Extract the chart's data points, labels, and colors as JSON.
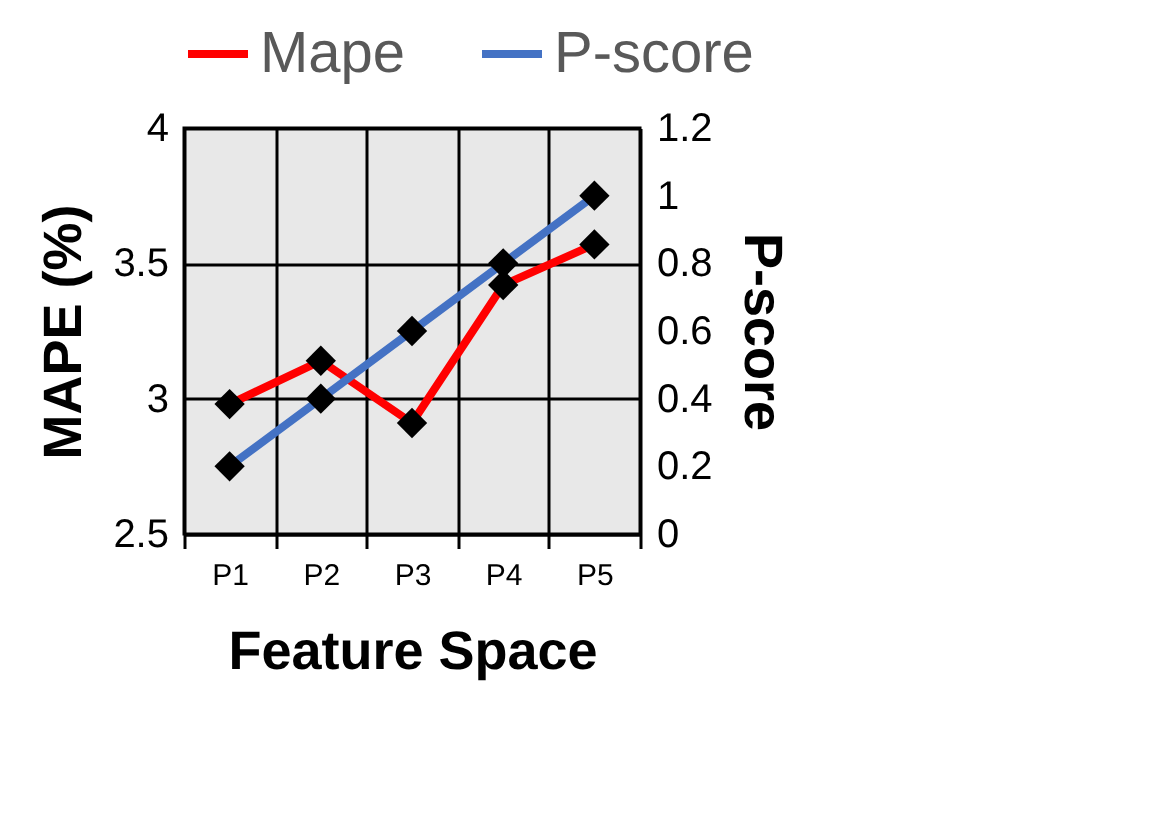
{
  "chart_data": {
    "type": "line",
    "xlabel": "Feature Space",
    "ylabel": "MAPE (%)",
    "y2label": "P-score",
    "categories": [
      "P1",
      "P2",
      "P3",
      "P4",
      "P5"
    ],
    "series": [
      {
        "name": "Mape",
        "color": "#ff0000",
        "values": [
          2.98,
          3.14,
          2.91,
          3.42,
          3.57
        ]
      },
      {
        "name": "P-score",
        "color": "#4472c4",
        "axis": "y2",
        "values": [
          0.2,
          0.4,
          0.6,
          0.8,
          1.0
        ]
      }
    ],
    "ylim": [
      2.5,
      4
    ],
    "yticks": [
      2.5,
      3,
      3.5,
      4
    ],
    "y2lim": [
      0,
      1.2
    ],
    "y2ticks": [
      0,
      0.2,
      0.4,
      0.6,
      0.8,
      1,
      1.2
    ],
    "grid": true,
    "legend": "top",
    "marker": "diamond",
    "line_style": "solid"
  }
}
